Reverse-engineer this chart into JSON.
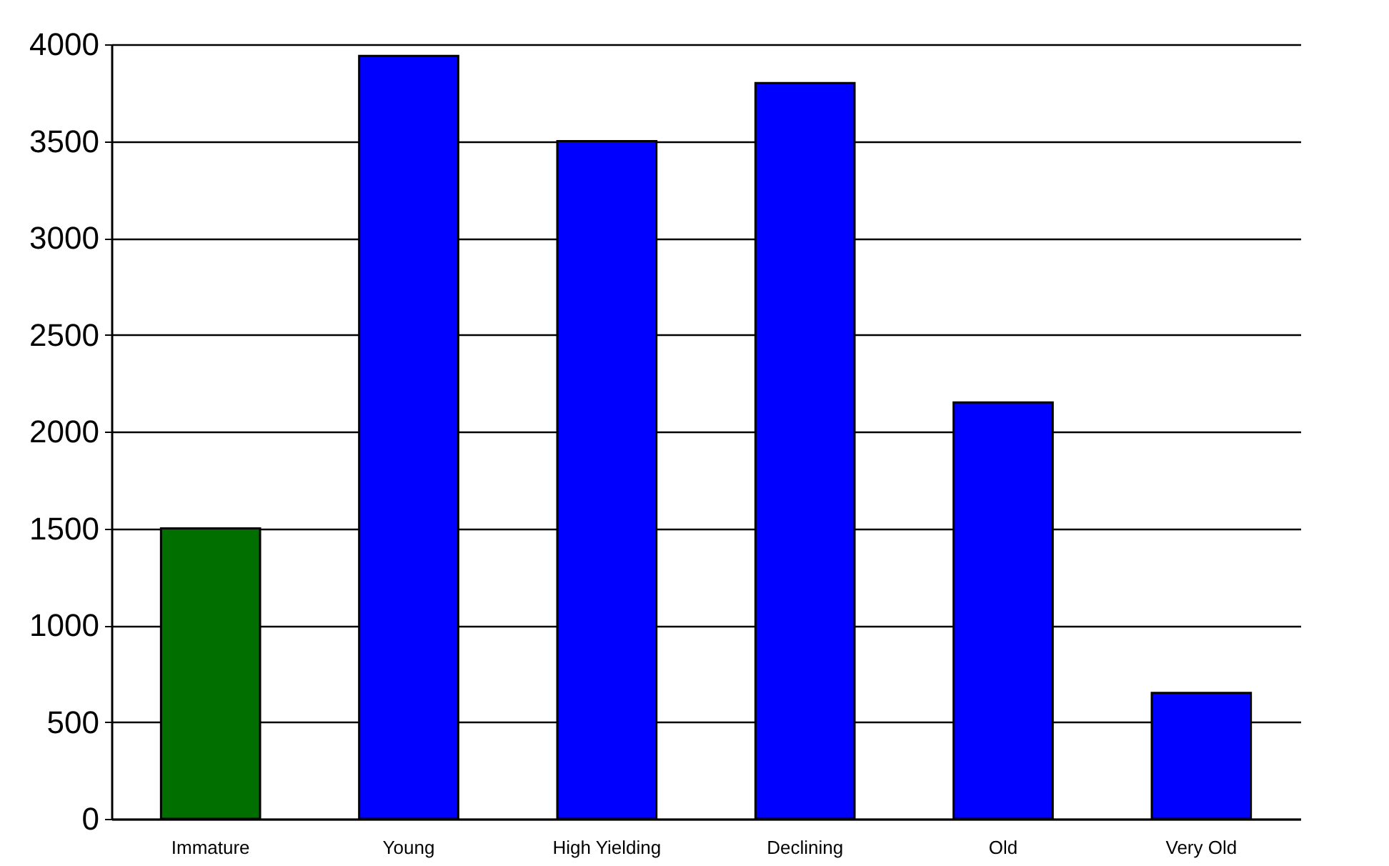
{
  "chart_data": {
    "type": "bar",
    "categories": [
      "Immature",
      "Young",
      "High Yielding",
      "Declining",
      "Old",
      "Very Old"
    ],
    "values": [
      1500,
      3940,
      3500,
      3800,
      2150,
      650
    ],
    "colors": [
      "#006f00",
      "#0000ff",
      "#0000ff",
      "#0000ff",
      "#0000ff",
      "#0000ff"
    ],
    "ylim": [
      0,
      4000
    ],
    "yticks": [
      0,
      500,
      1000,
      1500,
      2000,
      2500,
      3000,
      3500,
      4000
    ],
    "grid": "y",
    "legend": false
  }
}
